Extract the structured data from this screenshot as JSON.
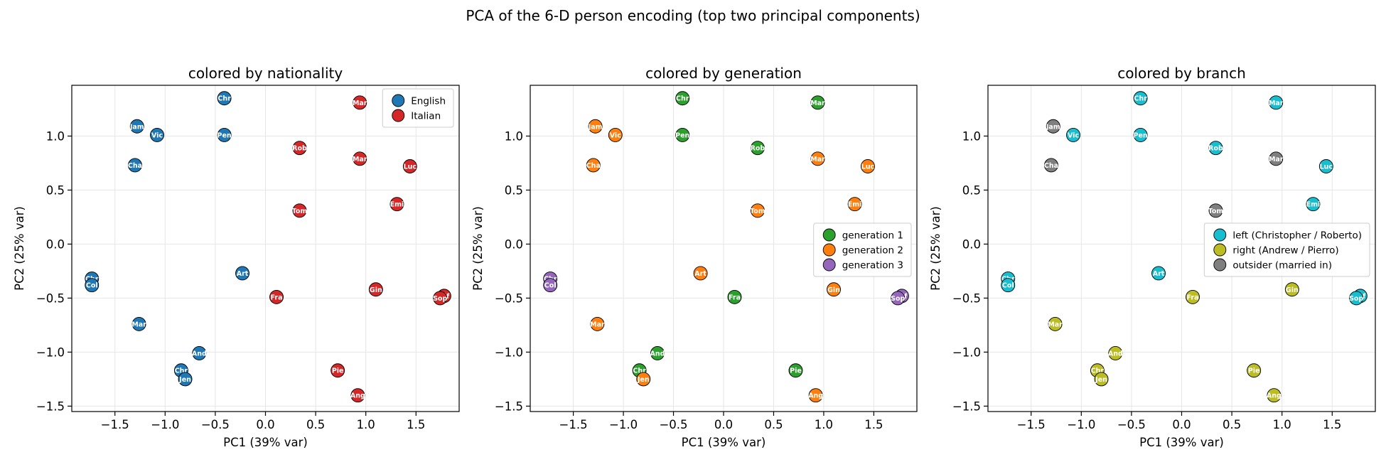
{
  "title": "PCA of the 6-D person encoding (top two principal components)",
  "colors": {
    "nationality": {
      "English": "#1f77b4",
      "Italian": "#d62728"
    },
    "generation": {
      "1": "#2ca02c",
      "2": "#ff7f0e",
      "3": "#9467bd"
    },
    "branch": {
      "left": "#17becf",
      "right": "#bcbd22",
      "outsider": "#7f7f7f"
    }
  },
  "chart_data": [
    {
      "type": "scatter",
      "title": "colored by nationality",
      "xlabel": "PC1 (39% var)",
      "ylabel": "PC2 (25% var)",
      "xlim": [
        -1.93,
        1.93
      ],
      "ylim": [
        -1.55,
        1.47
      ],
      "xticks": [
        -1.5,
        -1.0,
        -0.5,
        0.0,
        0.5,
        1.0,
        1.5
      ],
      "yticks": [
        -1.5,
        -1.0,
        -0.5,
        0.0,
        0.5,
        1.0
      ],
      "grid": true,
      "color_by": "nationality",
      "legend_position": "top-right",
      "legend": [
        {
          "key": "English",
          "label": "English"
        },
        {
          "key": "Italian",
          "label": "Italian"
        }
      ]
    },
    {
      "type": "scatter",
      "title": "colored by generation",
      "xlabel": "PC1 (39% var)",
      "ylabel": "PC2 (25% var)",
      "xlim": [
        -1.93,
        1.93
      ],
      "ylim": [
        -1.55,
        1.47
      ],
      "xticks": [
        -1.5,
        -1.0,
        -0.5,
        0.0,
        0.5,
        1.0,
        1.5
      ],
      "yticks": [
        -1.5,
        -1.0,
        -0.5,
        0.0,
        0.5,
        1.0
      ],
      "grid": true,
      "color_by": "generation",
      "legend_position": "center-right",
      "legend": [
        {
          "key": "1",
          "label": "generation 1"
        },
        {
          "key": "2",
          "label": "generation 2"
        },
        {
          "key": "3",
          "label": "generation 3"
        }
      ]
    },
    {
      "type": "scatter",
      "title": "colored by branch",
      "xlabel": "PC1 (39% var)",
      "ylabel": "PC2 (25% var)",
      "xlim": [
        -1.93,
        1.93
      ],
      "ylim": [
        -1.55,
        1.47
      ],
      "xticks": [
        -1.5,
        -1.0,
        -0.5,
        0.0,
        0.5,
        1.0,
        1.5
      ],
      "yticks": [
        -1.5,
        -1.0,
        -0.5,
        0.0,
        0.5,
        1.0
      ],
      "grid": true,
      "color_by": "branch",
      "legend_position": "center-right",
      "legend": [
        {
          "key": "left",
          "label": "left (Christopher / Roberto)"
        },
        {
          "key": "right",
          "label": "right (Andrew / Pierro)"
        },
        {
          "key": "outsider",
          "label": "outsider (married in)"
        }
      ]
    }
  ],
  "points": [
    {
      "label": "Chr",
      "x": -0.41,
      "y": 1.35,
      "nationality": "English",
      "generation": "1",
      "branch": "left"
    },
    {
      "label": "Mar",
      "x": 0.94,
      "y": 1.31,
      "nationality": "Italian",
      "generation": "1",
      "branch": "left"
    },
    {
      "label": "Jam",
      "x": -1.28,
      "y": 1.09,
      "nationality": "English",
      "generation": "2",
      "branch": "outsider"
    },
    {
      "label": "Vic",
      "x": -1.08,
      "y": 1.01,
      "nationality": "English",
      "generation": "2",
      "branch": "left"
    },
    {
      "label": "Pen",
      "x": -0.41,
      "y": 1.01,
      "nationality": "English",
      "generation": "1",
      "branch": "left"
    },
    {
      "label": "Rob",
      "x": 0.34,
      "y": 0.89,
      "nationality": "Italian",
      "generation": "1",
      "branch": "left"
    },
    {
      "label": "Mar",
      "x": 0.94,
      "y": 0.79,
      "nationality": "Italian",
      "generation": "2",
      "branch": "outsider"
    },
    {
      "label": "Cha",
      "x": -1.3,
      "y": 0.73,
      "nationality": "English",
      "generation": "2",
      "branch": "outsider"
    },
    {
      "label": "Luc",
      "x": 1.44,
      "y": 0.72,
      "nationality": "Italian",
      "generation": "2",
      "branch": "left"
    },
    {
      "label": "Emi",
      "x": 1.31,
      "y": 0.37,
      "nationality": "Italian",
      "generation": "2",
      "branch": "left"
    },
    {
      "label": "Tom",
      "x": 0.34,
      "y": 0.31,
      "nationality": "Italian",
      "generation": "2",
      "branch": "outsider"
    },
    {
      "label": "Art",
      "x": -0.23,
      "y": -0.27,
      "nationality": "English",
      "generation": "2",
      "branch": "left"
    },
    {
      "label": "Chr",
      "x": -1.73,
      "y": -0.32,
      "nationality": "English",
      "generation": "3",
      "branch": "left"
    },
    {
      "label": "Col",
      "x": -1.73,
      "y": -0.38,
      "nationality": "English",
      "generation": "3",
      "branch": "left"
    },
    {
      "label": "Gin",
      "x": 1.1,
      "y": -0.42,
      "nationality": "Italian",
      "generation": "2",
      "branch": "right"
    },
    {
      "label": "Fra",
      "x": 0.11,
      "y": -0.49,
      "nationality": "Italian",
      "generation": "1",
      "branch": "right"
    },
    {
      "label": "Alf",
      "x": 1.78,
      "y": -0.48,
      "nationality": "Italian",
      "generation": "3",
      "branch": "left"
    },
    {
      "label": "Sop",
      "x": 1.74,
      "y": -0.5,
      "nationality": "Italian",
      "generation": "3",
      "branch": "left"
    },
    {
      "label": "Mar",
      "x": -1.26,
      "y": -0.74,
      "nationality": "English",
      "generation": "2",
      "branch": "right"
    },
    {
      "label": "And",
      "x": -0.66,
      "y": -1.01,
      "nationality": "English",
      "generation": "1",
      "branch": "right"
    },
    {
      "label": "Chr",
      "x": -0.84,
      "y": -1.17,
      "nationality": "English",
      "generation": "1",
      "branch": "right"
    },
    {
      "label": "Pie",
      "x": 0.72,
      "y": -1.17,
      "nationality": "Italian",
      "generation": "1",
      "branch": "right"
    },
    {
      "label": "Jen",
      "x": -0.8,
      "y": -1.25,
      "nationality": "English",
      "generation": "2",
      "branch": "right"
    },
    {
      "label": "Ang",
      "x": 0.92,
      "y": -1.4,
      "nationality": "Italian",
      "generation": "2",
      "branch": "right"
    }
  ]
}
